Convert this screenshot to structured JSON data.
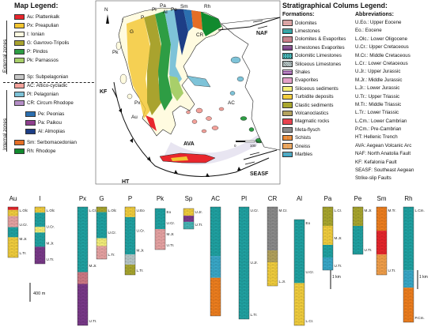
{
  "map_legend": {
    "title": "Map Legend:",
    "external_label": "External zones",
    "internal_label": "Internal zones",
    "external": [
      {
        "label": "Au: Plattenkalk",
        "color": "#e8262d"
      },
      {
        "label": "Px: Preapulian",
        "color": "#f2c530"
      },
      {
        "label": "I: Ionian",
        "color": "#fffbe0"
      },
      {
        "label": "G: Gavrovo-Tripolis",
        "color": "#a9a32e"
      },
      {
        "label": "P: Pindos",
        "color": "#2e9d44"
      },
      {
        "label": "Pk: Parnassos",
        "color": "#a8cf6a"
      }
    ],
    "internal": [
      {
        "label": "Sp: Subpelagonian",
        "color": "#c8c8c8"
      },
      {
        "label": "AC: Attico-cycladic",
        "color": "#f4a19a"
      },
      {
        "label": "Pl: Pelagonian",
        "color": "#7ec3d8"
      },
      {
        "label": "CR: Circum Rhodope",
        "color": "#b58ec7"
      }
    ],
    "internal_sub": [
      {
        "label": "Pe: Peonias",
        "color": "#2b6fb0"
      },
      {
        "label": "Pa: Paikou",
        "color": "#8f3f8e"
      },
      {
        "label": "Al: Almopias",
        "color": "#1d3e86"
      }
    ],
    "internal_2": [
      {
        "label": "Sm: Serbomacedonian",
        "color": "#e46e26"
      },
      {
        "label": "Rh: Rhodope",
        "color": "#118a2e"
      }
    ]
  },
  "map": {
    "labels": [
      "Au",
      "Px",
      "I",
      "G",
      "P",
      "Pk",
      "Pl",
      "Pa",
      "Al",
      "Pe",
      "Sm",
      "Rh",
      "CR",
      "AC"
    ],
    "faults": [
      "NAF",
      "KF",
      "HT",
      "AVA",
      "SEASF"
    ],
    "scale": {
      "zero": "0",
      "hundred": "100",
      "unit": "km"
    },
    "north": "N"
  },
  "strat_legend": {
    "title": "Stratigraphical Colums Legend:",
    "formations_title": "Formations:",
    "abbrev_title": "Abbreviations:",
    "formations": [
      {
        "label": "Dolomites",
        "color": "#e8a4a4",
        "pattern": "brick-pink"
      },
      {
        "label": "Limestones",
        "color": "#20a3a3",
        "pattern": "brick-teal"
      },
      {
        "label": "Dolomites & Evaporites",
        "color": "#d07a85",
        "pattern": "brick-mix"
      },
      {
        "label": "Limestones  Evaporites",
        "color": "#7a3a8a",
        "pattern": "brick-purple"
      },
      {
        "label": "Dolomitic Limestones",
        "color": "#47b6b6",
        "pattern": "dot-teal"
      },
      {
        "label": "Siliceous Limestones",
        "color": "#b8c9c9",
        "pattern": "hatch"
      },
      {
        "label": "Shales",
        "color": "#7e3a8c",
        "pattern": "dash"
      },
      {
        "label": "Evaporites",
        "color": "#e4a0c8",
        "pattern": "solid"
      },
      {
        "label": "Siliceous sediments",
        "color": "#f5f07a",
        "pattern": "solid"
      },
      {
        "label": "Turbidite deposits",
        "color": "#f3cf3e",
        "pattern": "solid"
      },
      {
        "label": "Clastic sediments",
        "color": "#a9a72e",
        "pattern": "solid"
      },
      {
        "label": "Volcanoclastics",
        "color": "#b4a35e",
        "pattern": "solid"
      },
      {
        "label": "Magmatic rocks",
        "color": "#e8434f",
        "pattern": "solid"
      },
      {
        "label": "Meta-flysch",
        "color": "#8c8c8c",
        "pattern": "solid"
      },
      {
        "label": "Schists",
        "color": "#f0801f",
        "pattern": "wave"
      },
      {
        "label": "Gneiss",
        "color": "#f3a04a",
        "pattern": "wave"
      },
      {
        "label": "Marbles",
        "color": "#3aa9c9",
        "pattern": "brick-blue"
      }
    ],
    "abbreviations": [
      "U.Eo.: Upper Eocene",
      "Eo.: Eocene",
      "L.Olc.: Lower Oligocene",
      "U.Cr.: Upper Cretaceous",
      "M.Cr.: Middle Cretaceous",
      "L.Cr.: Lower Cretaceous",
      "U.Jr.: Upper Jurassic",
      "M.Jr.: Middle Jurassic",
      "L.Jr.: Lower Jurassic",
      "U.Tr.: Upper Triassic",
      "M.Tr.: Middle Triassic",
      "L.Tr.: Lower Triassic",
      "L.Cm.: Lower Cambrian",
      "P.Cm.: Pre-Cambrian",
      "HT: Hellenic Trench",
      "AVA: Aegean Volcanic Arc",
      "NAF: North Anatolia Fault",
      "KF: Kefalonia Fault",
      "SEASF: Southeast Aegean",
      "Strike-slip Faults"
    ]
  },
  "columns": {
    "scale_400": "400 m",
    "scale_1km_a": "1 km",
    "scale_1km_b": "1 km",
    "list": [
      {
        "name": "Au",
        "labels": [
          "L.Olc",
          "U.Cr.",
          "M.Jr.",
          "L.Tr."
        ],
        "layers": [
          [
            "#e8262d",
            0.06
          ],
          [
            "#f3cf3e",
            0.12
          ],
          [
            "#e8a4a4",
            0.22
          ],
          [
            "#20a3a3",
            0.2
          ],
          [
            "#f3cf3e",
            0.4
          ]
        ]
      },
      {
        "name": "I",
        "labels": [
          "L.Olc",
          "U.Cr.",
          "M.Jr.",
          "U.Tr."
        ],
        "layers": [
          [
            "#f3cf3e",
            0.1
          ],
          [
            "#20a3a3",
            0.25
          ],
          [
            "#f5f07a",
            0.1
          ],
          [
            "#20a3a3",
            0.25
          ],
          [
            "#7a3a8a",
            0.3
          ]
        ]
      },
      {
        "name": "Px",
        "labels": [
          "L.Cr.",
          "M.Jr.",
          "U.Tr."
        ],
        "layers": [
          [
            "#20a3a3",
            0.55
          ],
          [
            "#d07a85",
            0.1
          ],
          [
            "#7a3a8a",
            0.35
          ]
        ]
      },
      {
        "name": "G",
        "labels": [
          "L.Olc",
          "U.Cr.",
          "L.Tr."
        ],
        "layers": [
          [
            "#a9a72e",
            0.1
          ],
          [
            "#20a3a3",
            0.5
          ],
          [
            "#f5f07a",
            0.15
          ],
          [
            "#e8a4a4",
            0.25
          ]
        ]
      },
      {
        "name": "P",
        "labels": [
          "U.Eo",
          "U.Cr.",
          "M.Jr.",
          "L.Tr."
        ],
        "layers": [
          [
            "#f3cf3e",
            0.15
          ],
          [
            "#20a3a3",
            0.55
          ],
          [
            "#b8c9c9",
            0.15
          ],
          [
            "#a9a72e",
            0.15
          ]
        ]
      },
      {
        "name": "Pk",
        "labels": [
          "Eo",
          "U.Cr.",
          "M.Jr.",
          "U.Tr."
        ],
        "layers": [
          [
            "#20a3a3",
            0.5
          ],
          [
            "#e8a4a4",
            0.5
          ]
        ]
      },
      {
        "name": "Sp",
        "labels": [
          "U.Jr.",
          "U.Tr."
        ],
        "layers": [
          [
            "#f3cf3e",
            0.35
          ],
          [
            "#7e3a8c",
            0.3
          ],
          [
            "#47b6b6",
            0.35
          ]
        ]
      },
      {
        "name": "AC",
        "labels": [],
        "layers": [
          [
            "#20a3a3",
            0.45
          ],
          [
            "#3aa9c9",
            0.2
          ],
          [
            "#f0801f",
            0.35
          ]
        ]
      },
      {
        "name": "Pl",
        "labels": [
          "U.Cr.",
          "U.Jr.",
          "L.Tr."
        ],
        "layers": [
          [
            "#20a3a3",
            1.0
          ]
        ]
      },
      {
        "name": "CR",
        "labels": [
          "M.Cr.",
          "L.Jr."
        ],
        "layers": [
          [
            "#8c8c8c",
            0.55
          ],
          [
            "#b4a35e",
            0.15
          ],
          [
            "#f3cf3e",
            0.3
          ]
        ]
      },
      {
        "name": "Al",
        "labels": [
          "Eo",
          "U.Cr.",
          "L.Cr."
        ],
        "layers": [
          [
            "#20a3a3",
            0.6
          ],
          [
            "#f3cf3e",
            0.4
          ]
        ]
      },
      {
        "name": "Pa",
        "labels": [
          "L.Cr.",
          "M.Jr.",
          "U.Tr."
        ],
        "layers": [
          [
            "#a9a72e",
            0.3
          ],
          [
            "#f3cf3e",
            0.3
          ],
          [
            "#20a3a3",
            0.2
          ],
          [
            "#3aa9c9",
            0.2
          ]
        ]
      },
      {
        "name": "Pe",
        "labels": [
          "M.Jr.",
          "U.Tr."
        ],
        "layers": [
          [
            "#a9a72e",
            0.4
          ],
          [
            "#20a3a3",
            0.6
          ]
        ]
      },
      {
        "name": "Sm",
        "labels": [
          "M.Tr.",
          "U.Tr."
        ],
        "layers": [
          [
            "#f0801f",
            0.35
          ],
          [
            "#e8262d",
            0.35
          ],
          [
            "#f3a04a",
            0.3
          ]
        ]
      },
      {
        "name": "Rh",
        "labels": [
          "L.Cm.",
          "P.Cm."
        ],
        "layers": [
          [
            "#20a3a3",
            0.55
          ],
          [
            "#3aa9c9",
            0.15
          ],
          [
            "#f0801f",
            0.3
          ]
        ]
      }
    ]
  }
}
